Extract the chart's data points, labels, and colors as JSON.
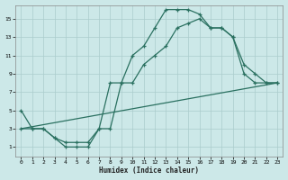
{
  "xlabel": "Humidex (Indice chaleur)",
  "ylabel": "",
  "bg_color": "#cce8e8",
  "grid_color": "#aacccc",
  "line_color": "#2a7060",
  "xlim": [
    -0.5,
    23.5
  ],
  "ylim": [
    0,
    16.5
  ],
  "xticks": [
    0,
    1,
    2,
    3,
    4,
    5,
    6,
    7,
    8,
    9,
    10,
    11,
    12,
    13,
    14,
    15,
    16,
    17,
    18,
    19,
    20,
    21,
    22,
    23
  ],
  "yticks": [
    1,
    3,
    5,
    7,
    9,
    11,
    13,
    15
  ],
  "line1_x": [
    0,
    1,
    2,
    3,
    4,
    5,
    6,
    7,
    8,
    9,
    10,
    11,
    12,
    13,
    14,
    15,
    16,
    17,
    18,
    19,
    20,
    21,
    22,
    23
  ],
  "line1_y": [
    5,
    3,
    3,
    2,
    1,
    1,
    1,
    3,
    3,
    8,
    11,
    12,
    14,
    16,
    16,
    16,
    15.5,
    14,
    14,
    13,
    10,
    9,
    8,
    8
  ],
  "line2_x": [
    0,
    1,
    2,
    3,
    4,
    5,
    6,
    7,
    8,
    9,
    10,
    11,
    12,
    13,
    14,
    15,
    16,
    17,
    18,
    19,
    20,
    21,
    22,
    23
  ],
  "line2_y": [
    3,
    3,
    3,
    2,
    1.5,
    1.5,
    1.5,
    3,
    8,
    8,
    8,
    10,
    11,
    12,
    14,
    14.5,
    15,
    14,
    14,
    13,
    9,
    8,
    8,
    8
  ],
  "line3_x": [
    0,
    23
  ],
  "line3_y": [
    3,
    8
  ]
}
